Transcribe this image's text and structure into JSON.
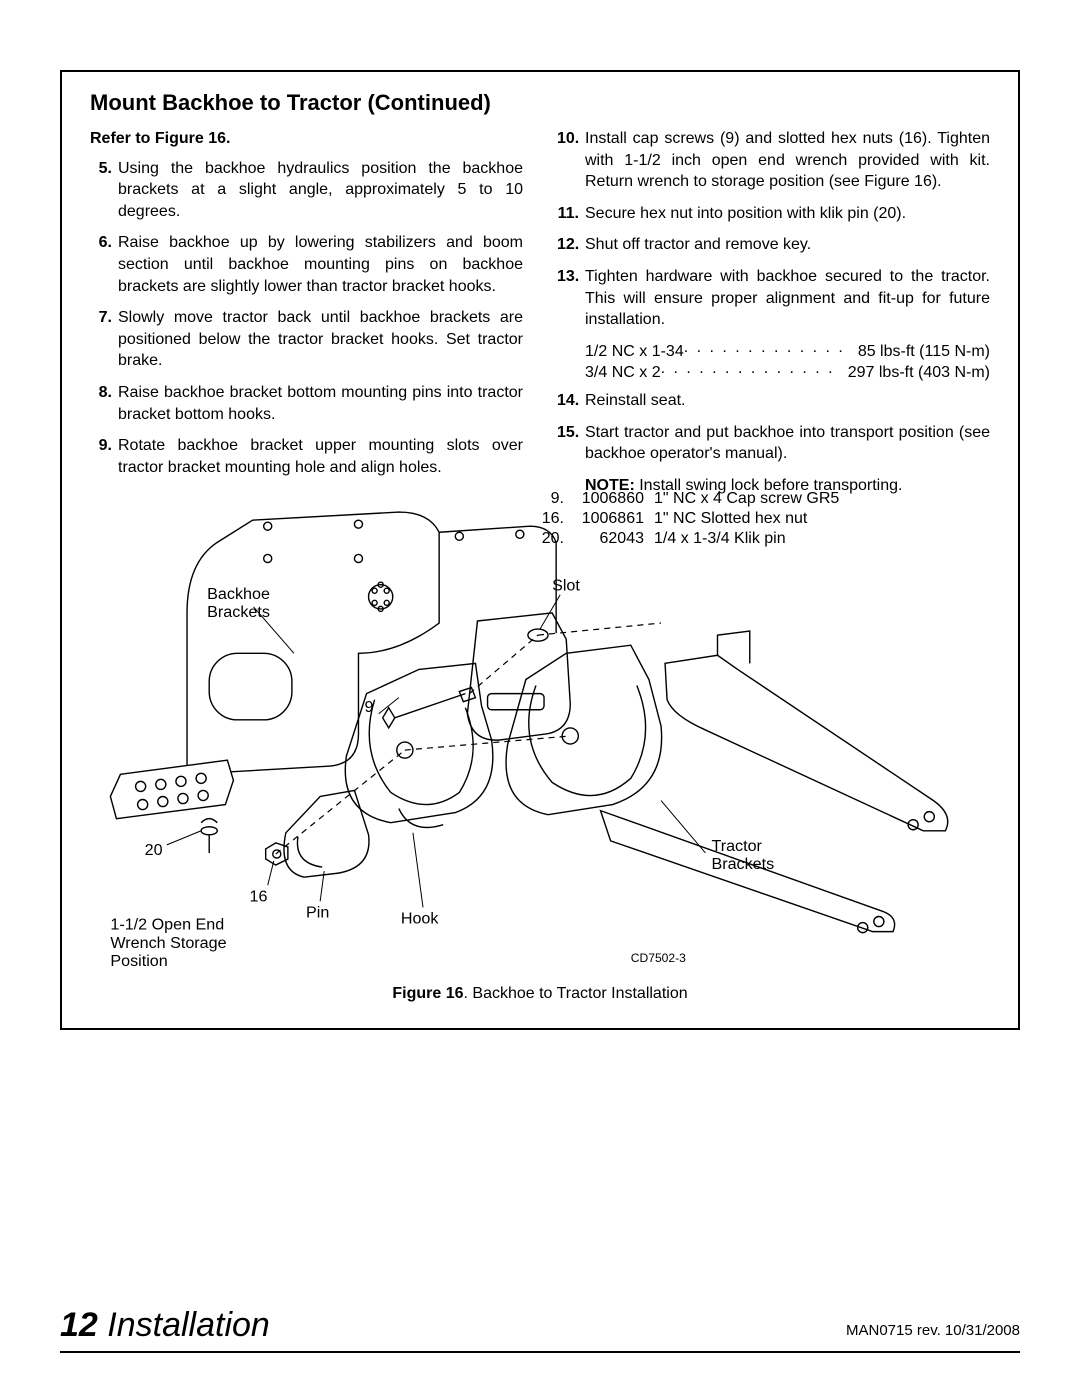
{
  "page": {
    "title": "Mount Backhoe to Tractor (Continued)",
    "refer": "Refer to Figure 16.",
    "left_steps": [
      {
        "n": "5.",
        "t": "Using the backhoe hydraulics position the backhoe brackets at a slight angle, approximately 5 to 10 degrees."
      },
      {
        "n": "6.",
        "t": "Raise backhoe up by lowering stabilizers and boom section until backhoe mounting pins on backhoe brackets are slightly lower than tractor bracket hooks."
      },
      {
        "n": "7.",
        "t": "Slowly move tractor back until backhoe brackets are positioned below the tractor bracket hooks. Set tractor brake."
      },
      {
        "n": "8.",
        "t": "Raise backhoe bracket bottom mounting pins into tractor bracket bottom hooks."
      },
      {
        "n": "9.",
        "t": "Rotate backhoe bracket upper mounting slots over tractor bracket mounting hole and align holes."
      }
    ],
    "right_steps": [
      {
        "n": "10.",
        "t": "Install cap screws (9) and slotted hex nuts (16). Tighten with 1-1/2 inch open end wrench provided with kit. Return wrench to storage position (see Figure 16)."
      },
      {
        "n": "11.",
        "t": "Secure hex nut into position with klik pin (20)."
      },
      {
        "n": "12.",
        "t": "Shut off tractor and remove key."
      },
      {
        "n": "13.",
        "t": "Tighten hardware with backhoe secured to the tractor. This will ensure proper alignment and fit-up for future installation."
      }
    ],
    "torque": [
      {
        "lead": "1/2 NC x 1-34",
        "val": "85 lbs-ft (115 N-m)"
      },
      {
        "lead": "3/4 NC x 2",
        "val": "297 lbs-ft (403 N-m)"
      }
    ],
    "right_steps_after": [
      {
        "n": "14.",
        "t": "Reinstall seat."
      },
      {
        "n": "15.",
        "t": "Start tractor and put backhoe into transport position (see backhoe operator's manual)."
      }
    ],
    "note": {
      "label": "NOTE:",
      "text": " Install swing lock before transporting."
    },
    "parts": [
      {
        "n": "9.",
        "code": "1006860",
        "desc": "1\" NC x 4 Cap screw GR5"
      },
      {
        "n": "16.",
        "code": "1006861",
        "desc": "1\" NC Slotted hex nut"
      },
      {
        "n": "20.",
        "code": "62043",
        "desc": "1/4 x 1-3/4 Klik pin"
      }
    ],
    "fig_labels": {
      "backhoe_brackets_1": "Backhoe",
      "backhoe_brackets_2": "Brackets",
      "slot": "Slot",
      "nine": "9",
      "twenty": "20",
      "sixteen": "16",
      "pin": "Pin",
      "hook": "Hook",
      "tractor_1": "Tractor",
      "tractor_2": "Brackets",
      "wrench_1": "1-1/2 Open End",
      "wrench_2": "Wrench Storage",
      "wrench_3": "Position",
      "draw_id": "CD7502-3"
    },
    "caption": {
      "label": "Figure 16",
      "text": ". Backhoe to Tractor Installation"
    },
    "footer": {
      "page": "12",
      "section": "Installation",
      "rev": "MAN0715 rev. 10/31/2008"
    }
  },
  "style": {
    "stroke": "#000000",
    "stroke_width": 1.4,
    "dash": "5 4"
  }
}
